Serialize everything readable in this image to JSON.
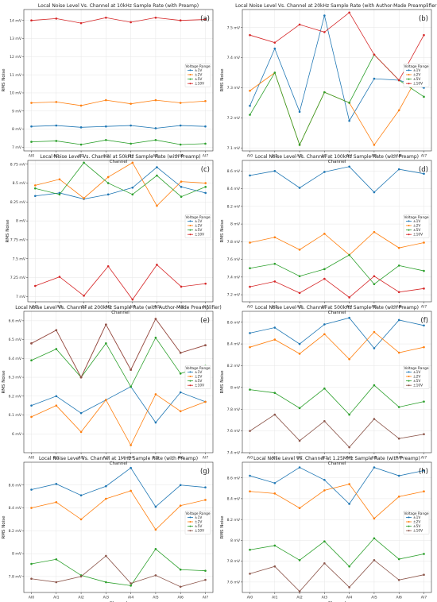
{
  "chart_data": [
    {
      "type": "line",
      "title": "Local Noise Level Vs. Channel at 10kHz Sample Rate (with Preamp)",
      "xlabel": "Channel",
      "ylabel": "RMS Noise",
      "panel": "(a)",
      "categories": [
        "AI0",
        "AI1",
        "AI2",
        "AI3",
        "AI4",
        "AI5",
        "AI6",
        "AI7"
      ],
      "ylim": [
        6.8,
        14.6
      ],
      "yticks": [
        7,
        8,
        9,
        10,
        11,
        12,
        13,
        14
      ],
      "ytick_labels": [
        "7 mV",
        "8 mV",
        "9 mV",
        "10 mV",
        "11 mV",
        "12 mV",
        "13 mV",
        "14 mV"
      ],
      "legend": {
        "title": "Voltage Range",
        "position": "center-right"
      },
      "series": [
        {
          "name": "±1V",
          "color": "#1f77b4",
          "values": [
            8.15,
            8.2,
            8.1,
            8.15,
            8.2,
            8.05,
            8.2,
            8.15
          ]
        },
        {
          "name": "±2V",
          "color": "#ff7f0e",
          "values": [
            9.45,
            9.5,
            9.3,
            9.6,
            9.4,
            9.6,
            9.45,
            9.55
          ]
        },
        {
          "name": "±5V",
          "color": "#2ca02c",
          "values": [
            7.3,
            7.35,
            7.15,
            7.4,
            7.2,
            7.4,
            7.15,
            7.2
          ]
        },
        {
          "name": "±10V",
          "color": "#d62728",
          "values": [
            14.0,
            14.1,
            13.85,
            14.15,
            13.9,
            14.15,
            14.0,
            14.05
          ]
        }
      ]
    },
    {
      "type": "line",
      "title": "Local Noise Level Vs. Channel at 20kHz Sample Rate (with Author-Made Preamplifier)",
      "xlabel": "Channel",
      "ylabel": "RMS Noise",
      "panel": "(b)",
      "categories": [
        "AI0",
        "AI1",
        "AI2",
        "AI3",
        "AI4",
        "AI5",
        "AI6",
        "AI7"
      ],
      "ylim": [
        7.09,
        7.56
      ],
      "yticks": [
        7.1,
        7.2,
        7.3,
        7.4,
        7.5
      ],
      "ytick_labels": [
        "7.1 mV",
        "7.2 mV",
        "7.3 mV",
        "7.4 mV",
        "7.5 mV"
      ],
      "legend": {
        "title": "Voltage Range",
        "position": "center-right"
      },
      "series": [
        {
          "name": "±1V",
          "color": "#1f77b4",
          "values": [
            7.24,
            7.43,
            7.22,
            7.54,
            7.19,
            7.33,
            7.325,
            7.3
          ]
        },
        {
          "name": "±2V",
          "color": "#ff7f0e",
          "values": [
            7.29,
            7.35,
            7.11,
            7.285,
            7.25,
            7.11,
            7.225,
            7.375
          ]
        },
        {
          "name": "±5V",
          "color": "#2ca02c",
          "values": [
            7.21,
            7.35,
            7.11,
            7.285,
            7.25,
            7.41,
            7.325,
            7.27
          ]
        },
        {
          "name": "±10V",
          "color": "#d62728",
          "values": [
            7.475,
            7.45,
            7.51,
            7.485,
            7.55,
            7.41,
            7.325,
            7.475
          ]
        }
      ]
    },
    {
      "type": "line",
      "title": "Local Noise Level Vs. Channel at 50kHz Sample Rate (with Preamp)",
      "xlabel": "Channel",
      "ylabel": "RMS Noise",
      "panel": "(c)",
      "categories": [
        "AI0",
        "AI1",
        "AI2",
        "AI3",
        "AI4",
        "AI5",
        "AI6",
        "AI7"
      ],
      "ylim": [
        6.93,
        8.8
      ],
      "yticks": [
        7.0,
        7.25,
        7.5,
        7.75,
        8.0,
        8.25,
        8.5,
        8.75
      ],
      "ytick_labels": [
        "7 mV",
        "7.25 mV",
        "7.5 mV",
        "7.75 mV",
        "8 mV",
        "8.25 mV",
        "8.5 mV",
        "8.75 mV"
      ],
      "legend": {
        "title": "Voltage Range",
        "position": "center-right"
      },
      "series": [
        {
          "name": "±1V",
          "color": "#1f77b4",
          "values": [
            8.33,
            8.37,
            8.29,
            8.35,
            8.44,
            8.71,
            8.45,
            8.37
          ]
        },
        {
          "name": "±2V",
          "color": "#ff7f0e",
          "values": [
            8.47,
            8.55,
            8.3,
            8.58,
            8.77,
            8.2,
            8.52,
            8.5
          ]
        },
        {
          "name": "±5V",
          "color": "#2ca02c",
          "values": [
            8.43,
            8.35,
            8.77,
            8.5,
            8.35,
            8.6,
            8.32,
            8.45
          ]
        },
        {
          "name": "±10V",
          "color": "#d62728",
          "values": [
            7.14,
            7.26,
            7.01,
            7.4,
            6.96,
            7.42,
            7.13,
            7.17
          ]
        }
      ]
    },
    {
      "type": "line",
      "title": "Local Noise Level Vs. Channel at 100kHz Sample Rate (with Preamp)",
      "xlabel": "Channel",
      "ylabel": "RMS Noise",
      "panel": "(d)",
      "categories": [
        "AI0",
        "AI1",
        "AI2",
        "AI3",
        "AI4",
        "AI5",
        "AI6",
        "AI7"
      ],
      "ylim": [
        7.12,
        8.72
      ],
      "yticks": [
        7.2,
        7.4,
        7.6,
        7.8,
        8.0,
        8.2,
        8.4,
        8.6
      ],
      "ytick_labels": [
        "7.2 mV",
        "7.4 mV",
        "7.6 mV",
        "7.8 mV",
        "8 mV",
        "8.2 mV",
        "8.4 mV",
        "8.6 mV"
      ],
      "legend": {
        "title": "Voltage Range",
        "position": "center-right"
      },
      "series": [
        {
          "name": "±1V",
          "color": "#1f77b4",
          "values": [
            8.55,
            8.6,
            8.41,
            8.59,
            8.65,
            8.36,
            8.62,
            8.57
          ]
        },
        {
          "name": "±2V",
          "color": "#ff7f0e",
          "values": [
            7.79,
            7.85,
            7.71,
            7.89,
            7.65,
            7.91,
            7.73,
            7.79
          ]
        },
        {
          "name": "±5V",
          "color": "#2ca02c",
          "values": [
            7.5,
            7.55,
            7.41,
            7.49,
            7.65,
            7.32,
            7.53,
            7.47
          ]
        },
        {
          "name": "±10V",
          "color": "#d62728",
          "values": [
            7.29,
            7.35,
            7.22,
            7.38,
            7.17,
            7.41,
            7.23,
            7.27
          ]
        }
      ]
    },
    {
      "type": "line",
      "title": "Local Noise Level Vs. Channel at 200kHz Sample Rate (with Author-Made Preamplifier)",
      "xlabel": "Channel",
      "ylabel": "RMS Noise",
      "panel": "(e)",
      "categories": [
        "AI0",
        "AI1",
        "AI2",
        "AI3",
        "AI4",
        "AI5",
        "AI6",
        "AI7"
      ],
      "ylim": [
        5.9,
        6.65
      ],
      "yticks": [
        6.0,
        6.1,
        6.2,
        6.3,
        6.4,
        6.5,
        6.6
      ],
      "ytick_labels": [
        "6 mV",
        "6.1 mV",
        "6.2 mV",
        "6.3 mV",
        "6.4 mV",
        "6.5 mV",
        "6.6 mV"
      ],
      "legend": {
        "title": "Voltage Range",
        "position": "center-right"
      },
      "series": [
        {
          "name": "±1V",
          "color": "#1f77b4",
          "values": [
            6.15,
            6.2,
            6.11,
            6.18,
            6.25,
            6.06,
            6.22,
            6.17
          ]
        },
        {
          "name": "±2V",
          "color": "#ff7f0e",
          "values": [
            6.09,
            6.15,
            6.01,
            6.18,
            5.94,
            6.21,
            6.12,
            6.17
          ]
        },
        {
          "name": "±5V",
          "color": "#2ca02c",
          "values": [
            6.39,
            6.45,
            6.3,
            6.48,
            6.25,
            6.51,
            6.32,
            6.36
          ]
        },
        {
          "name": "±10V",
          "color": "#d62728",
          "values": [
            6.48,
            6.55,
            6.3,
            6.58,
            6.34,
            6.61,
            6.43,
            6.47
          ]
        },
        {
          "name": "",
          "color": "#8c564b",
          "values": [
            6.48,
            6.55,
            6.3,
            6.58,
            6.34,
            6.61,
            6.43,
            6.47
          ]
        }
      ]
    },
    {
      "type": "line",
      "title": "Local Noise Level Vs. Channel at 500kHz Sample Rate (with Preamp)",
      "xlabel": "Channel",
      "ylabel": "RMS Noise",
      "panel": "(f)",
      "categories": [
        "AI0",
        "AI1",
        "AI2",
        "AI3",
        "AI4",
        "AI5",
        "AI6",
        "AI7"
      ],
      "ylim": [
        7.4,
        8.7
      ],
      "yticks": [
        7.4,
        7.6,
        7.8,
        8.0,
        8.2,
        8.4,
        8.6
      ],
      "ytick_labels": [
        "7.4 mV",
        "7.6 mV",
        "7.8 mV",
        "8 mV",
        "8.2 mV",
        "8.4 mV",
        "8.6 mV"
      ],
      "legend": {
        "title": "Voltage Range",
        "position": "center-right"
      },
      "series": [
        {
          "name": "±1V",
          "color": "#1f77b4",
          "values": [
            8.5,
            8.55,
            8.4,
            8.58,
            8.64,
            8.36,
            8.62,
            8.57
          ]
        },
        {
          "name": "±2V",
          "color": "#ff7f0e",
          "values": [
            8.37,
            8.44,
            8.31,
            8.49,
            8.26,
            8.51,
            8.32,
            8.37
          ]
        },
        {
          "name": "±5V",
          "color": "#2ca02c",
          "values": [
            7.98,
            7.95,
            7.81,
            7.99,
            7.75,
            8.02,
            7.82,
            7.87
          ]
        },
        {
          "name": "±10V",
          "color": "#8c564b",
          "values": [
            7.6,
            7.75,
            7.51,
            7.69,
            7.45,
            7.71,
            7.53,
            7.57
          ]
        }
      ]
    },
    {
      "type": "line",
      "title": "Local Noise Level Vs. Channel at 1MHz Sample Rate (with Preamp)",
      "xlabel": "Channel",
      "ylabel": "RMS Noise",
      "panel": "(g)",
      "categories": [
        "AI0",
        "AI1",
        "AI2",
        "AI3",
        "AI4",
        "AI5",
        "AI6",
        "AI7"
      ],
      "ylim": [
        7.66,
        8.8
      ],
      "yticks": [
        7.8,
        8.0,
        8.2,
        8.4,
        8.6
      ],
      "ytick_labels": [
        "7.8 mV",
        "8 mV",
        "8.2 mV",
        "8.4 mV",
        "8.6 mV"
      ],
      "legend": {
        "title": "Voltage Range",
        "position": "center-right"
      },
      "series": [
        {
          "name": "±1V",
          "color": "#1f77b4",
          "values": [
            8.56,
            8.61,
            8.51,
            8.59,
            8.75,
            8.41,
            8.6,
            8.58
          ]
        },
        {
          "name": "±2V",
          "color": "#ff7f0e",
          "values": [
            8.4,
            8.45,
            8.3,
            8.48,
            8.55,
            8.21,
            8.42,
            8.47
          ]
        },
        {
          "name": "±5V",
          "color": "#2ca02c",
          "values": [
            7.91,
            7.95,
            7.81,
            7.75,
            7.72,
            8.04,
            7.86,
            7.85
          ]
        },
        {
          "name": "±10V",
          "color": "#8c564b",
          "values": [
            7.78,
            7.75,
            7.8,
            7.98,
            7.74,
            7.81,
            7.71,
            7.77
          ]
        }
      ]
    },
    {
      "type": "line",
      "title": "Local Noise Level Vs. Channel at 1.25MHz Sample Rate (with Preamp)",
      "xlabel": "Channel",
      "ylabel": "RMS Noise",
      "panel": "(h)",
      "categories": [
        "AI0",
        "AI1",
        "AI2",
        "AI3",
        "AI4",
        "AI5",
        "AI6",
        "AI7"
      ],
      "ylim": [
        7.5,
        8.75
      ],
      "yticks": [
        7.6,
        7.8,
        8.0,
        8.2,
        8.4,
        8.6
      ],
      "ytick_labels": [
        "7.6 mV",
        "7.8 mV",
        "8 mV",
        "8.2 mV",
        "8.4 mV",
        "8.6 mV"
      ],
      "legend": {
        "title": "Voltage Range",
        "position": "center-right"
      },
      "series": [
        {
          "name": "±1V",
          "color": "#1f77b4",
          "values": [
            8.62,
            8.55,
            8.7,
            8.58,
            8.35,
            8.7,
            8.62,
            8.67
          ]
        },
        {
          "name": "±2V",
          "color": "#ff7f0e",
          "values": [
            8.47,
            8.45,
            8.31,
            8.48,
            8.54,
            8.21,
            8.42,
            8.47
          ]
        },
        {
          "name": "±5V",
          "color": "#2ca02c",
          "values": [
            7.91,
            7.95,
            7.81,
            7.99,
            7.75,
            8.02,
            7.82,
            7.87
          ]
        },
        {
          "name": "±10V",
          "color": "#8c564b",
          "values": [
            7.68,
            7.75,
            7.51,
            7.78,
            7.55,
            7.81,
            7.62,
            7.67
          ]
        }
      ]
    }
  ]
}
